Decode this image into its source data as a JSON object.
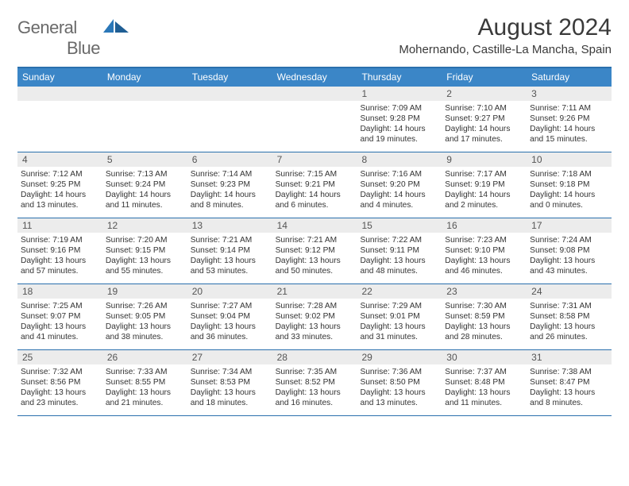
{
  "brand": {
    "word1": "General",
    "word2": "Blue"
  },
  "header": {
    "title": "August 2024",
    "location": "Mohernando, Castille-La Mancha, Spain"
  },
  "colors": {
    "header_bar": "#3b86c7",
    "border": "#2a70ad",
    "daynum_bg": "#ececec",
    "logo_gray": "#6a6a6a",
    "logo_blue": "#2a77b8"
  },
  "dow": [
    "Sunday",
    "Monday",
    "Tuesday",
    "Wednesday",
    "Thursday",
    "Friday",
    "Saturday"
  ],
  "weeks": [
    [
      null,
      null,
      null,
      null,
      {
        "n": "1",
        "sr": "7:09 AM",
        "ss": "9:28 PM",
        "dl": "14 hours and 19 minutes."
      },
      {
        "n": "2",
        "sr": "7:10 AM",
        "ss": "9:27 PM",
        "dl": "14 hours and 17 minutes."
      },
      {
        "n": "3",
        "sr": "7:11 AM",
        "ss": "9:26 PM",
        "dl": "14 hours and 15 minutes."
      }
    ],
    [
      {
        "n": "4",
        "sr": "7:12 AM",
        "ss": "9:25 PM",
        "dl": "14 hours and 13 minutes."
      },
      {
        "n": "5",
        "sr": "7:13 AM",
        "ss": "9:24 PM",
        "dl": "14 hours and 11 minutes."
      },
      {
        "n": "6",
        "sr": "7:14 AM",
        "ss": "9:23 PM",
        "dl": "14 hours and 8 minutes."
      },
      {
        "n": "7",
        "sr": "7:15 AM",
        "ss": "9:21 PM",
        "dl": "14 hours and 6 minutes."
      },
      {
        "n": "8",
        "sr": "7:16 AM",
        "ss": "9:20 PM",
        "dl": "14 hours and 4 minutes."
      },
      {
        "n": "9",
        "sr": "7:17 AM",
        "ss": "9:19 PM",
        "dl": "14 hours and 2 minutes."
      },
      {
        "n": "10",
        "sr": "7:18 AM",
        "ss": "9:18 PM",
        "dl": "14 hours and 0 minutes."
      }
    ],
    [
      {
        "n": "11",
        "sr": "7:19 AM",
        "ss": "9:16 PM",
        "dl": "13 hours and 57 minutes."
      },
      {
        "n": "12",
        "sr": "7:20 AM",
        "ss": "9:15 PM",
        "dl": "13 hours and 55 minutes."
      },
      {
        "n": "13",
        "sr": "7:21 AM",
        "ss": "9:14 PM",
        "dl": "13 hours and 53 minutes."
      },
      {
        "n": "14",
        "sr": "7:21 AM",
        "ss": "9:12 PM",
        "dl": "13 hours and 50 minutes."
      },
      {
        "n": "15",
        "sr": "7:22 AM",
        "ss": "9:11 PM",
        "dl": "13 hours and 48 minutes."
      },
      {
        "n": "16",
        "sr": "7:23 AM",
        "ss": "9:10 PM",
        "dl": "13 hours and 46 minutes."
      },
      {
        "n": "17",
        "sr": "7:24 AM",
        "ss": "9:08 PM",
        "dl": "13 hours and 43 minutes."
      }
    ],
    [
      {
        "n": "18",
        "sr": "7:25 AM",
        "ss": "9:07 PM",
        "dl": "13 hours and 41 minutes."
      },
      {
        "n": "19",
        "sr": "7:26 AM",
        "ss": "9:05 PM",
        "dl": "13 hours and 38 minutes."
      },
      {
        "n": "20",
        "sr": "7:27 AM",
        "ss": "9:04 PM",
        "dl": "13 hours and 36 minutes."
      },
      {
        "n": "21",
        "sr": "7:28 AM",
        "ss": "9:02 PM",
        "dl": "13 hours and 33 minutes."
      },
      {
        "n": "22",
        "sr": "7:29 AM",
        "ss": "9:01 PM",
        "dl": "13 hours and 31 minutes."
      },
      {
        "n": "23",
        "sr": "7:30 AM",
        "ss": "8:59 PM",
        "dl": "13 hours and 28 minutes."
      },
      {
        "n": "24",
        "sr": "7:31 AM",
        "ss": "8:58 PM",
        "dl": "13 hours and 26 minutes."
      }
    ],
    [
      {
        "n": "25",
        "sr": "7:32 AM",
        "ss": "8:56 PM",
        "dl": "13 hours and 23 minutes."
      },
      {
        "n": "26",
        "sr": "7:33 AM",
        "ss": "8:55 PM",
        "dl": "13 hours and 21 minutes."
      },
      {
        "n": "27",
        "sr": "7:34 AM",
        "ss": "8:53 PM",
        "dl": "13 hours and 18 minutes."
      },
      {
        "n": "28",
        "sr": "7:35 AM",
        "ss": "8:52 PM",
        "dl": "13 hours and 16 minutes."
      },
      {
        "n": "29",
        "sr": "7:36 AM",
        "ss": "8:50 PM",
        "dl": "13 hours and 13 minutes."
      },
      {
        "n": "30",
        "sr": "7:37 AM",
        "ss": "8:48 PM",
        "dl": "13 hours and 11 minutes."
      },
      {
        "n": "31",
        "sr": "7:38 AM",
        "ss": "8:47 PM",
        "dl": "13 hours and 8 minutes."
      }
    ]
  ],
  "labels": {
    "sunrise": "Sunrise:",
    "sunset": "Sunset:",
    "daylight": "Daylight:"
  }
}
